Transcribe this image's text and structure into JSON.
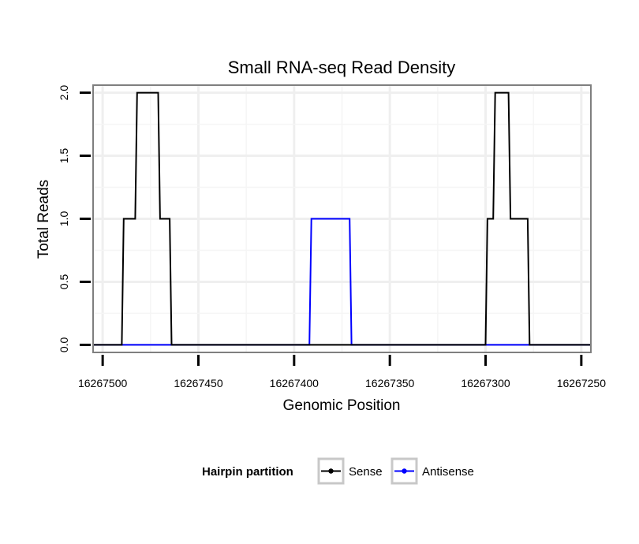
{
  "chart_data": {
    "type": "line",
    "title": "Small RNA-seq Read Density",
    "xlabel": "Genomic Position",
    "ylabel": "Total Reads",
    "x_reversed": true,
    "xlim": [
      16267505,
      16267245
    ],
    "ylim": [
      -0.06,
      2.06
    ],
    "x_ticks": [
      16267500,
      16267450,
      16267400,
      16267350,
      16267300,
      16267250
    ],
    "x_tick_labels": [
      "16267500",
      "16267450",
      "16267400",
      "16267350",
      "16267300",
      "16267250"
    ],
    "y_ticks": [
      0,
      0.5,
      1,
      1.5,
      2
    ],
    "y_tick_labels": [
      "0.0",
      "0.5",
      "1.0",
      "1.5",
      "2.0"
    ],
    "grid": true,
    "legend": {
      "title": "Hairpin partition",
      "position": "bottom",
      "entries": [
        {
          "name": "Sense",
          "color": "#000000"
        },
        {
          "name": "Antisense",
          "color": "#0000ff"
        }
      ]
    },
    "series": [
      {
        "name": "Antisense",
        "color": "#0000ff",
        "x": [
          16267505,
          16267392,
          16267391,
          16267371,
          16267370,
          16267294,
          16267278,
          16267245
        ],
        "y": [
          0,
          0,
          1,
          1,
          0,
          0,
          0,
          0
        ]
      },
      {
        "name": "Sense",
        "color": "#000000",
        "x": [
          16267505,
          16267490,
          16267489,
          16267483,
          16267482,
          16267471,
          16267470,
          16267465,
          16267464,
          16267300,
          16267299,
          16267296,
          16267295,
          16267288,
          16267287,
          16267278,
          16267277,
          16267245
        ],
        "y": [
          0,
          0,
          1,
          1,
          2,
          2,
          1,
          1,
          0,
          0,
          1,
          1,
          2,
          2,
          1,
          1,
          0,
          0
        ]
      }
    ]
  }
}
